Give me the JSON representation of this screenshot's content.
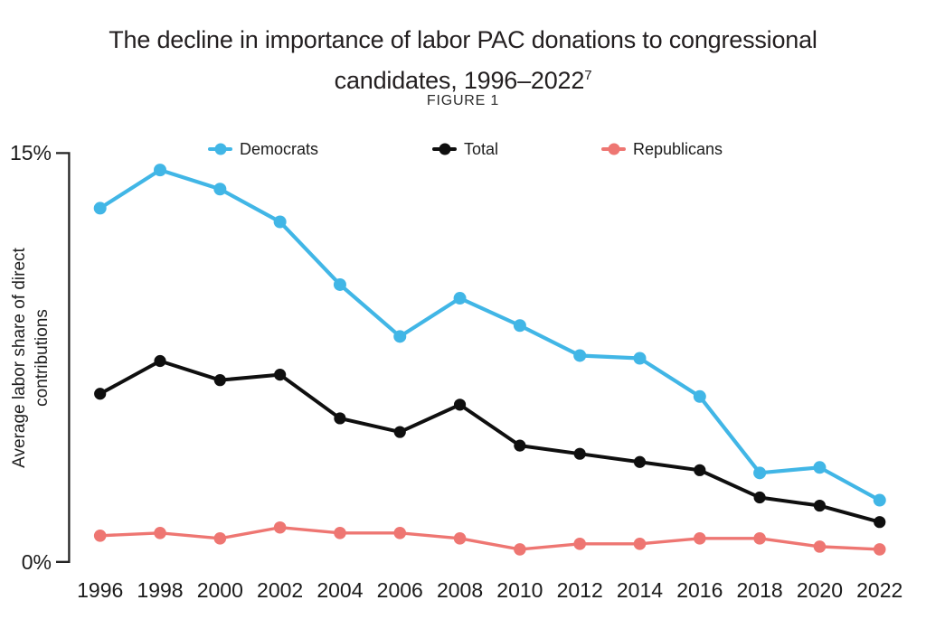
{
  "title": {
    "line1": "The decline in importance of labor PAC donations to congressional",
    "line2": "candidates, 1996–2022",
    "superscript": "7",
    "figure_label": "FIGURE 1"
  },
  "y_axis": {
    "title_line1": "Average labor share of direct",
    "title_line2": "contributions"
  },
  "colors": {
    "democrats": "#41b6e6",
    "total": "#0f0f0f",
    "republicans": "#ee7672",
    "axis": "#232323",
    "text": "#231f20"
  },
  "chart_data": {
    "type": "line",
    "title": "The decline in importance of labor PAC donations to congressional candidates, 1996–2022",
    "figure_label": "FIGURE 1",
    "xlabel": "",
    "ylabel": "Average labor share of direct contributions",
    "ylim": [
      0,
      15
    ],
    "grid": false,
    "legend_position": "top",
    "x": [
      1996,
      1998,
      2000,
      2002,
      2004,
      2006,
      2008,
      2010,
      2012,
      2014,
      2016,
      2018,
      2020,
      2022
    ],
    "yticks": [
      {
        "value": 15,
        "label": "15%"
      },
      {
        "value": 0,
        "label": "0%"
      }
    ],
    "series": [
      {
        "name": "Democrats",
        "color": "#41b6e6",
        "values": [
          13.0,
          14.4,
          13.7,
          12.5,
          10.2,
          8.3,
          9.7,
          8.7,
          7.6,
          7.5,
          6.1,
          3.3,
          3.5,
          2.3
        ]
      },
      {
        "name": "Total",
        "color": "#0f0f0f",
        "values": [
          6.2,
          7.4,
          6.7,
          6.9,
          5.3,
          4.8,
          5.8,
          4.3,
          4.0,
          3.7,
          3.4,
          2.4,
          2.1,
          1.5
        ]
      },
      {
        "name": "Republicans",
        "color": "#ee7672",
        "values": [
          1.0,
          1.1,
          0.9,
          1.3,
          1.1,
          1.1,
          0.9,
          0.5,
          0.7,
          0.7,
          0.9,
          0.9,
          0.6,
          0.5
        ]
      }
    ]
  }
}
